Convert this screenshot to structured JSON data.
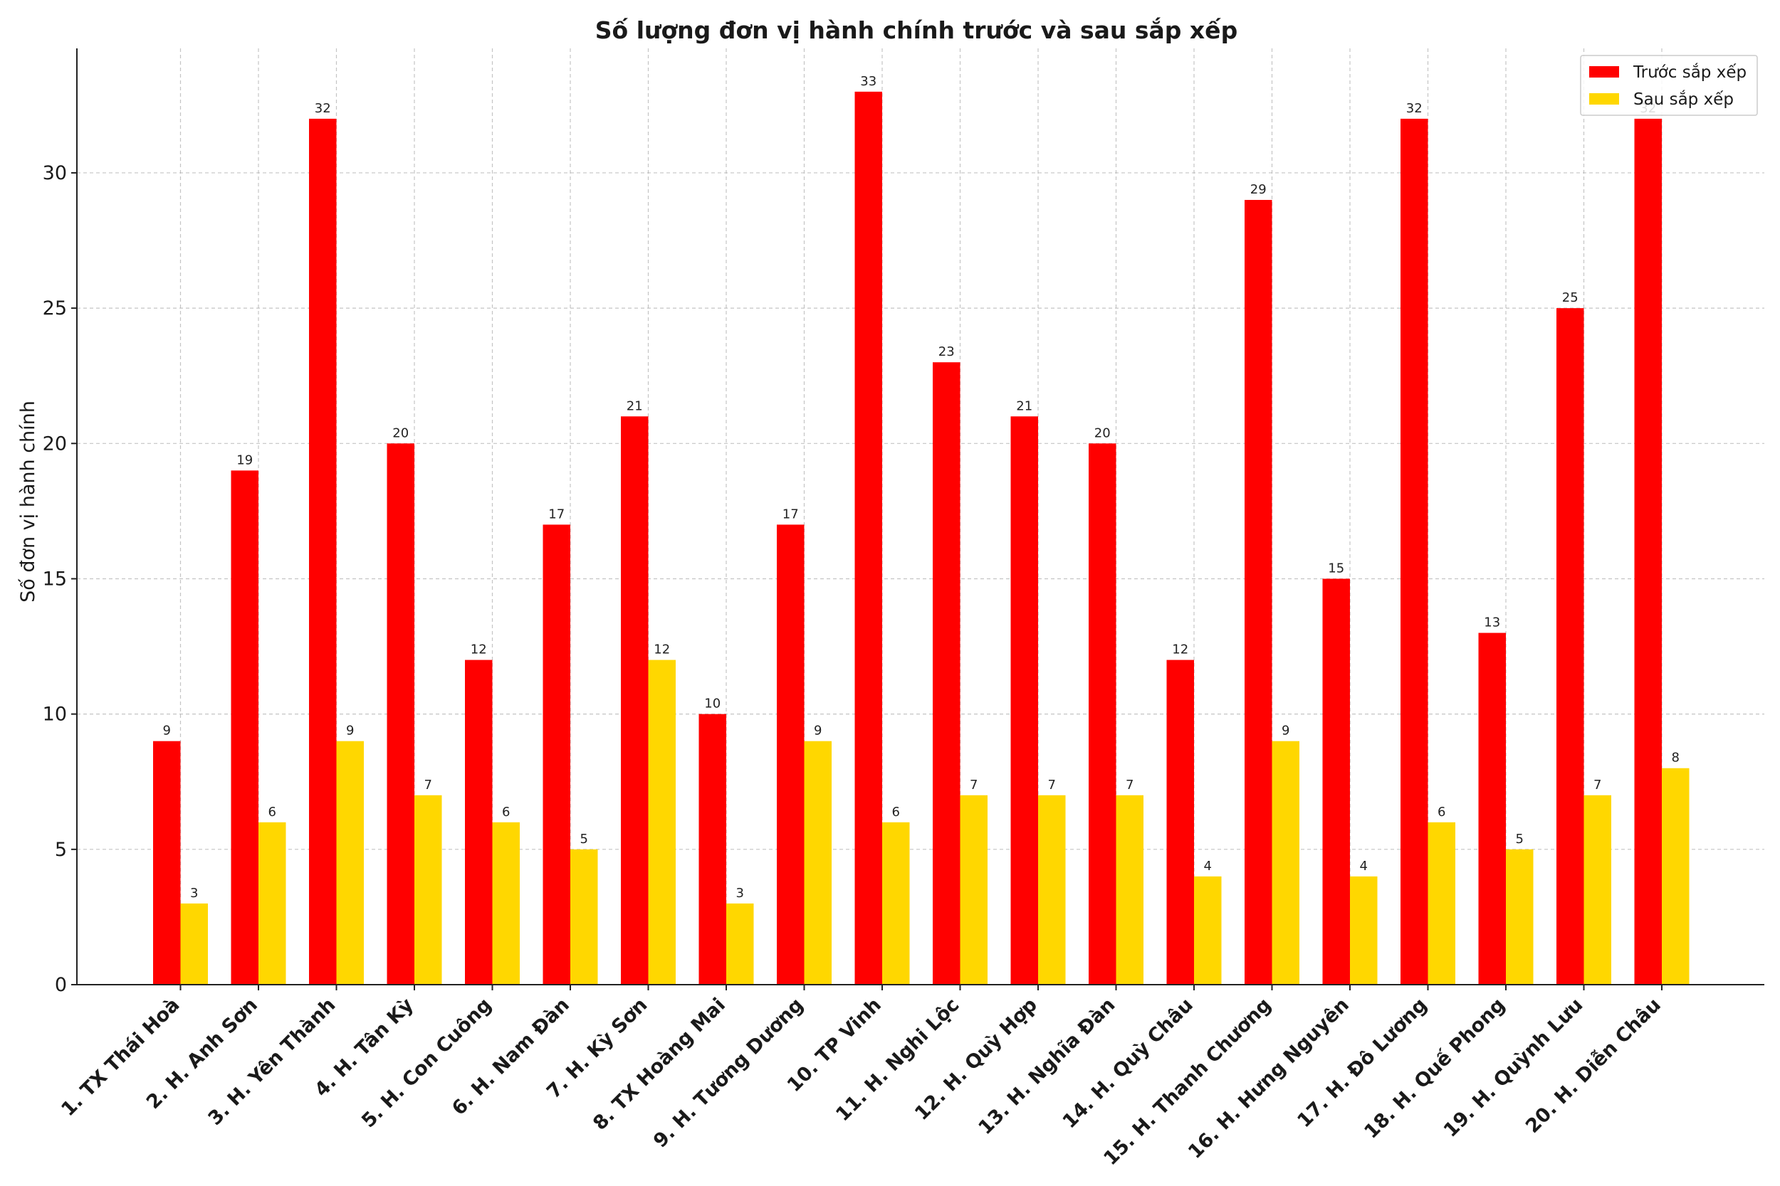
{
  "chart_data": {
    "type": "bar",
    "title": "Số lượng đơn vị hành chính trước và sau sắp xếp",
    "xlabel": "",
    "ylabel": "Số đơn vị hành chính",
    "ylim": [
      0,
      34.6
    ],
    "yticks": [
      0,
      5,
      10,
      15,
      20,
      25,
      30
    ],
    "grid": true,
    "legend_position": "top-right",
    "categories": [
      "1. TX Thái Hoà",
      "2. H. Anh Sơn",
      "3. H. Yên Thành",
      "4. H. Tân Kỳ",
      "5. H. Con Cuông",
      "6. H. Nam Đàn",
      "7. H. Kỳ Sơn",
      "8. TX Hoàng Mai",
      "9. H. Tương Dương",
      "10. TP Vinh",
      "11. H. Nghi Lộc",
      "12. H. Quỳ Hợp",
      "13. H. Nghĩa Đàn",
      "14. H. Quỳ Châu",
      "15. H. Thanh Chương",
      "16. H. Hưng Nguyên",
      "17. H. Đô Lương",
      "18. H. Quế Phong",
      "19. H. Quỳnh Lưu",
      "20. H. Diễn Châu"
    ],
    "series": [
      {
        "name": "Trước sắp xếp",
        "color": "#ff0000",
        "values": [
          9,
          19,
          32,
          20,
          12,
          17,
          21,
          10,
          17,
          33,
          23,
          21,
          20,
          12,
          29,
          15,
          32,
          13,
          25,
          32
        ]
      },
      {
        "name": "Sau sắp xếp",
        "color": "#ffd700",
        "values": [
          3,
          6,
          9,
          7,
          6,
          5,
          12,
          3,
          9,
          6,
          7,
          7,
          7,
          4,
          9,
          4,
          6,
          5,
          7,
          8
        ]
      }
    ]
  }
}
